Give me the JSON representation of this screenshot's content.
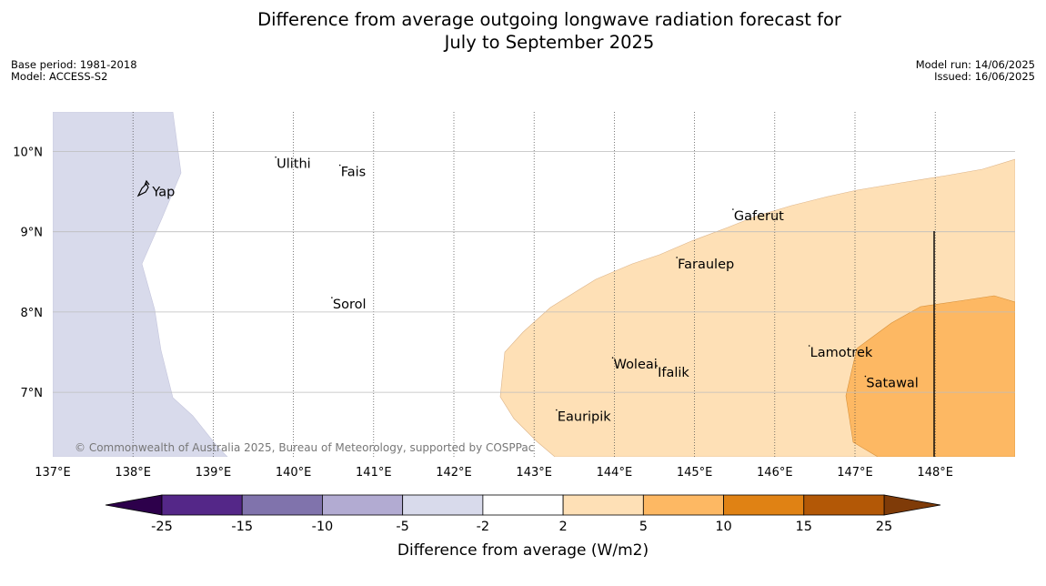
{
  "title_line1": "Difference from average outgoing longwave radiation forecast for",
  "title_line2": "July to September 2025",
  "meta_left": [
    "Base period: 1981-2018",
    "Model: ACCESS-S2"
  ],
  "meta_right": [
    "Model run: 14/06/2025",
    "Issued: 16/06/2025"
  ],
  "credit": "© Commonwealth of Australia 2025, Bureau of Meteorology, supported by COSPPac",
  "lon_labels": [
    "137°E",
    "138°E",
    "139°E",
    "140°E",
    "141°E",
    "142°E",
    "143°E",
    "144°E",
    "145°E",
    "146°E",
    "147°E",
    "148°E"
  ],
  "lat_labels": [
    "10°N",
    "9°N",
    "8°N",
    "7°N"
  ],
  "places": [
    {
      "name": "Yap",
      "lon": 138.15,
      "lat": 9.5
    },
    {
      "name": "Ulithi",
      "lon": 139.7,
      "lat": 9.85
    },
    {
      "name": "Fais",
      "lon": 140.5,
      "lat": 9.75
    },
    {
      "name": "Gaferut",
      "lon": 145.4,
      "lat": 9.2
    },
    {
      "name": "Faraulep",
      "lon": 144.7,
      "lat": 8.6
    },
    {
      "name": "Sorol",
      "lon": 140.4,
      "lat": 8.1
    },
    {
      "name": "Woleai",
      "lon": 143.9,
      "lat": 7.35
    },
    {
      "name": "Ifalik",
      "lon": 144.45,
      "lat": 7.25
    },
    {
      "name": "Lamotrek",
      "lon": 146.35,
      "lat": 7.5
    },
    {
      "name": "Satawal",
      "lon": 147.05,
      "lat": 7.12
    },
    {
      "name": "Eauripik",
      "lon": 143.2,
      "lat": 6.7
    }
  ],
  "colorbar": {
    "ticks": [
      "-25",
      "-15",
      "-10",
      "-5",
      "-2",
      "2",
      "5",
      "10",
      "15",
      "25"
    ],
    "colors": [
      "#542788",
      "#8073ac",
      "#b2abd2",
      "#d8daeb",
      "#ffffff",
      "#fee0b6",
      "#fdb863",
      "#e08214",
      "#b35806"
    ],
    "extend_low": "#2d004b",
    "extend_high": "#7f3b08",
    "label": "Difference from average (W/m2)"
  },
  "regions": [
    {
      "category": "-5 to -2",
      "color": "#d8daeb"
    },
    {
      "category": "2 to 5",
      "color": "#fee0b6"
    },
    {
      "category": "5 to 10",
      "color": "#fdb863"
    }
  ]
}
